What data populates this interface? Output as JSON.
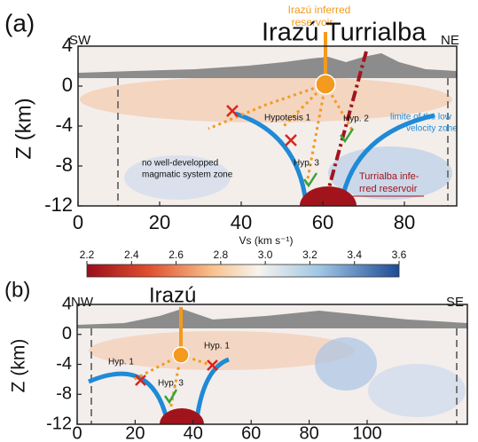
{
  "panels": [
    {
      "label": "(a)",
      "left_direction": "SW",
      "right_direction": "NE",
      "title": "Irazú Turrialba",
      "y_axis_label": "Z (km)",
      "xticks": [
        0,
        20,
        40,
        60,
        80
      ],
      "yticks": [
        4,
        0,
        -4,
        -8,
        -12
      ],
      "annotations": {
        "irazu_reservoir": [
          "Irazú inferred",
          "reservoir"
        ],
        "hypothesis_1": "Hypotesis 1",
        "hypothesis_2": "Hyp. 2",
        "hypothesis_3": "Hyp. 3",
        "low_velocity_limit": [
          "limite of the low",
          "velocity zone"
        ],
        "no_magmatic_zone": [
          "no well-developped",
          "magmatic system zone"
        ],
        "turrialba_reservoir": [
          "Turrialba infe-",
          "rred reservoir"
        ]
      }
    },
    {
      "label": "(b)",
      "left_direction": "NW",
      "right_direction": "SE",
      "title": "Irazú",
      "y_axis_label": "Z (km)",
      "xticks": [
        0,
        20,
        40,
        60,
        80,
        100
      ],
      "yticks": [
        4,
        0,
        -4,
        -8,
        -12
      ],
      "annotations": {
        "hypothesis_1_left": "Hyp. 1",
        "hypothesis_1_right": "Hyp. 1",
        "hypothesis_3": "Hyp. 3"
      }
    }
  ],
  "colorbar": {
    "label": "Vs (km s⁻¹)",
    "ticks": [
      2.2,
      2.4,
      2.6,
      2.8,
      {
        "value": 3,
        "label": "3.0"
      },
      3.2,
      3.4,
      3.6
    ]
  }
}
